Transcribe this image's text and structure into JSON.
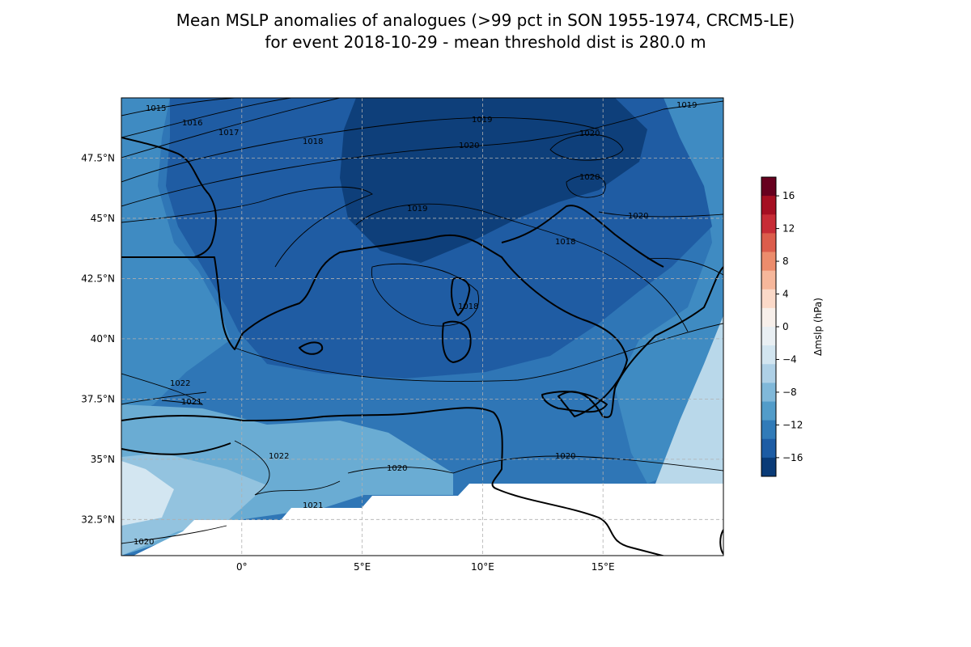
{
  "title": {
    "line1": "Mean MSLP anomalies of analogues (>99 pct in SON 1955-1974, CRCM5-LE)",
    "line2": "for event 2018-10-29 - mean threshold dist is 280.0 m"
  },
  "map": {
    "lon_range": [
      -5,
      20
    ],
    "lat_range": [
      31,
      50
    ],
    "lon_ticks": [
      {
        "value": 0,
        "label": "0°"
      },
      {
        "value": 5,
        "label": "5°E"
      },
      {
        "value": 10,
        "label": "10°E"
      },
      {
        "value": 15,
        "label": "15°E"
      }
    ],
    "lat_ticks": [
      {
        "value": 32.5,
        "label": "32.5°N"
      },
      {
        "value": 35,
        "label": "35°N"
      },
      {
        "value": 37.5,
        "label": "37.5°N"
      },
      {
        "value": 40,
        "label": "40°N"
      },
      {
        "value": 42.5,
        "label": "42.5°N"
      },
      {
        "value": 45,
        "label": "45°N"
      },
      {
        "value": 47.5,
        "label": "47.5°N"
      }
    ],
    "grid": "dashed",
    "contour_labels": [
      "1015",
      "1016",
      "1017",
      "1018",
      "1019",
      "1019",
      "1020",
      "1020",
      "1020",
      "1020",
      "1019",
      "1018",
      "1018",
      "1022",
      "1021",
      "1022",
      "1021",
      "1020",
      "1020",
      "1020"
    ]
  },
  "colorbar": {
    "label": "Δmslp (hPa)",
    "ticks": [
      "16",
      "12",
      "8",
      "4",
      "0",
      "−4",
      "−8",
      "−12",
      "−16"
    ],
    "colors": [
      "#67001f",
      "#a50f22",
      "#c72c36",
      "#dc5d4c",
      "#ec8c6c",
      "#f6b79b",
      "#fbd9c8",
      "#f7efea",
      "#e9eff3",
      "#d2e5f0",
      "#aed0e6",
      "#80b8d9",
      "#529cc9",
      "#317bb8",
      "#1d5ca4",
      "#0a3b77"
    ]
  },
  "fill_colors": {
    "darkest": "#0e3f7a",
    "dark": "#1f5ca3",
    "medium": "#2f76b6",
    "mid": "#3f8bc2",
    "light": "#6aacd3",
    "lighter": "#93c3df",
    "lightest": "#b9d8ea",
    "palest": "#d3e6f1"
  }
}
